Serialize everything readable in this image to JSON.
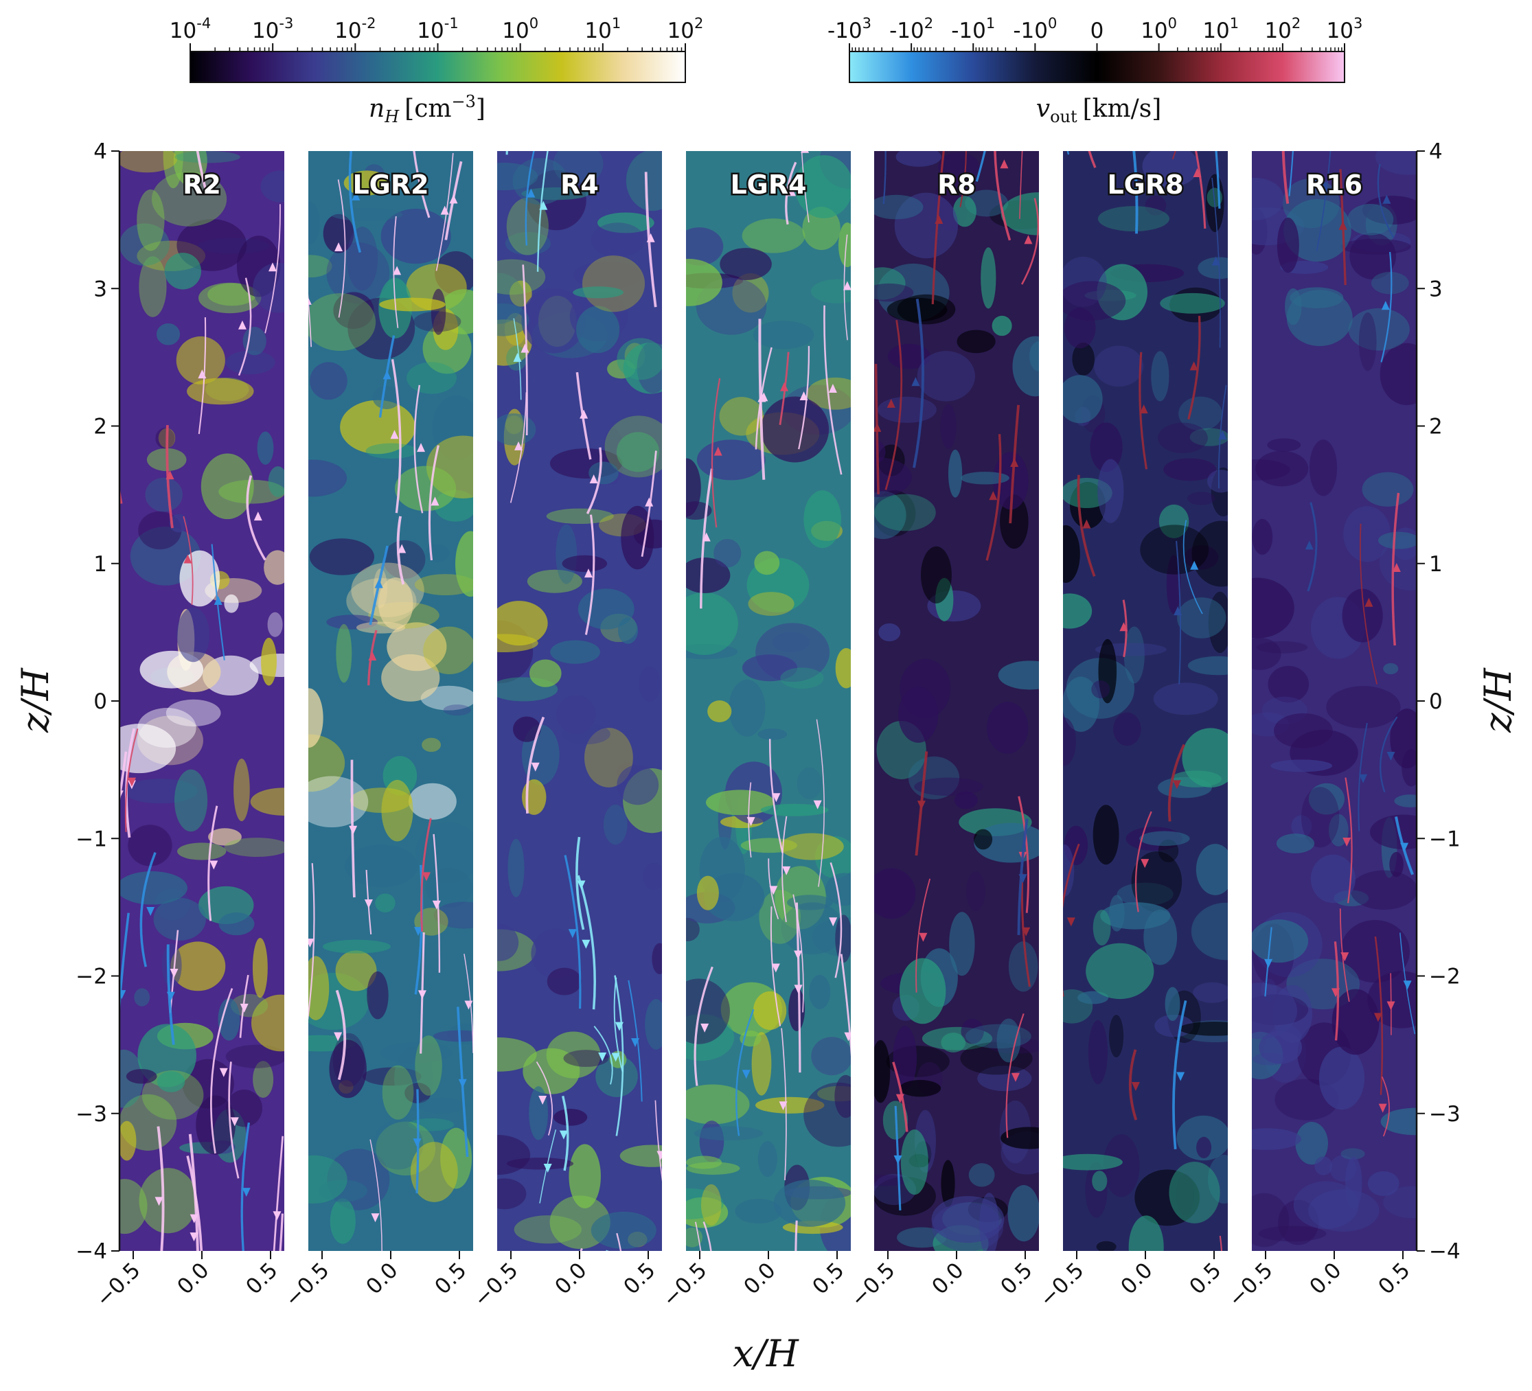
{
  "chart_data": {
    "type": "heatmap",
    "panels": [
      {
        "label": "R2",
        "base": "#4a2a8a"
      },
      {
        "label": "LGR2",
        "base": "#2b6f8c"
      },
      {
        "label": "R4",
        "base": "#3a3f8f"
      },
      {
        "label": "LGR4",
        "base": "#2f7a88"
      },
      {
        "label": "R8",
        "base": "#2a1a4e"
      },
      {
        "label": "LGR8",
        "base": "#252860"
      },
      {
        "label": "R16",
        "base": "#3a2a78"
      }
    ],
    "x_ticks": [
      "−0.5",
      "0.0",
      "0.5"
    ],
    "x_range": [
      -0.6,
      0.6
    ],
    "z_ticks": [
      "−4",
      "−3",
      "−2",
      "−1",
      "0",
      "1",
      "2",
      "3",
      "4"
    ],
    "z_range": [
      -4,
      4
    ],
    "xlabel": "x/H",
    "ylabel": "z/H",
    "colorbars": [
      {
        "name": "density",
        "label_main": "n",
        "label_sub": "H",
        "label_unit": "[cm",
        "label_exp": "−3",
        "label_close": "]",
        "tick_base": [
          "10",
          "10",
          "10",
          "10",
          "10",
          "10",
          "10"
        ],
        "tick_exp": [
          "-4",
          "-3",
          "-2",
          "-1",
          "0",
          "1",
          "2"
        ],
        "colors": [
          "#000004",
          "#2d0f5a",
          "#3b3c8f",
          "#2b6b8d",
          "#2a9c7e",
          "#7cc24a",
          "#c7c21e",
          "#f0d9a0",
          "#ffffff"
        ]
      },
      {
        "name": "velocity",
        "label_main": "v",
        "label_sub": "out",
        "label_unit": "[km/s]",
        "tick_base": [
          "-10",
          "-10",
          "-10",
          "-10",
          "0",
          "10",
          "10",
          "10",
          "10"
        ],
        "tick_exp": [
          "3",
          "2",
          "1",
          "0",
          "",
          "0",
          "1",
          "2",
          "3"
        ],
        "colors": [
          "#8ae8f7",
          "#2f8fe0",
          "#2a4a9a",
          "#141a3a",
          "#000000",
          "#3a1414",
          "#9a2a3a",
          "#d84a6a",
          "#f8c6f2"
        ]
      }
    ]
  }
}
